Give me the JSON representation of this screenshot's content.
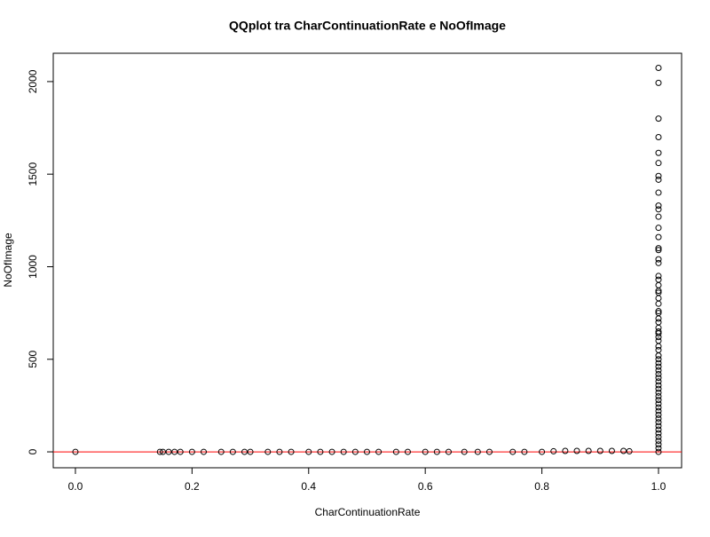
{
  "chart_data": {
    "type": "scatter",
    "title": "QQplot tra CharContinuationRate e NoOfImage",
    "xlabel": "CharContinuationRate",
    "ylabel": "NoOfImage",
    "xlim": [
      -0.038,
      1.0396
    ],
    "ylim": [
      -86,
      2153
    ],
    "xticks": [
      {
        "value": 0,
        "label": "0.0"
      },
      0.2,
      0.4,
      0.6,
      0.8,
      {
        "value": 1,
        "label": "1.0"
      }
    ],
    "yticks": [
      0,
      500,
      1000,
      1500,
      2000
    ],
    "hline": {
      "value": 0,
      "color": "#ff0000"
    },
    "series": [
      {
        "color": "#000000",
        "x": [
          0,
          0.145,
          0.15,
          0.16,
          0.17,
          0.18,
          0.2,
          0.22,
          0.25,
          0.27,
          0.29,
          0.3,
          0.33,
          0.35,
          0.37,
          0.4,
          0.42,
          0.44,
          0.46,
          0.48,
          0.5,
          0.52,
          0.55,
          0.57,
          0.6,
          0.62,
          0.64,
          0.667,
          0.69,
          0.71,
          0.75,
          0.77,
          0.8,
          0.82,
          0.84,
          0.86,
          0.88,
          0.9,
          0.92,
          0.94,
          0.95,
          1,
          1,
          1,
          1,
          1,
          1,
          1,
          1,
          1,
          1,
          1,
          1,
          1,
          1,
          1,
          1,
          1,
          1,
          1,
          1,
          1,
          1,
          1,
          1,
          1,
          1,
          1,
          1,
          1,
          1,
          1,
          1,
          1,
          1,
          1,
          1,
          1,
          1,
          1,
          1,
          1,
          1,
          1,
          1,
          1,
          1,
          1,
          1,
          1,
          1,
          1,
          1,
          1,
          1,
          1,
          1,
          1,
          1,
          1,
          1,
          1,
          1,
          1
        ],
        "y": [
          0,
          0,
          0,
          0,
          0,
          0,
          0,
          0,
          0,
          0,
          0,
          0,
          0,
          0,
          0,
          0,
          0,
          0,
          0,
          0,
          0,
          0,
          0,
          0,
          0,
          0,
          0,
          0,
          0,
          0,
          0,
          0,
          0,
          3,
          5,
          5,
          5,
          5,
          5,
          5,
          3,
          2074,
          1993,
          1800,
          1700,
          1615,
          1560,
          1490,
          1470,
          1400,
          1330,
          1310,
          1270,
          1210,
          1160,
          1100,
          1090,
          1040,
          1020,
          950,
          930,
          900,
          870,
          860,
          830,
          800,
          760,
          750,
          720,
          700,
          670,
          650,
          640,
          620,
          600,
          570,
          550,
          520,
          500,
          480,
          460,
          440,
          420,
          400,
          380,
          360,
          340,
          320,
          300,
          280,
          260,
          240,
          220,
          200,
          180,
          160,
          140,
          120,
          100,
          80,
          60,
          40,
          20,
          0
        ]
      }
    ]
  }
}
